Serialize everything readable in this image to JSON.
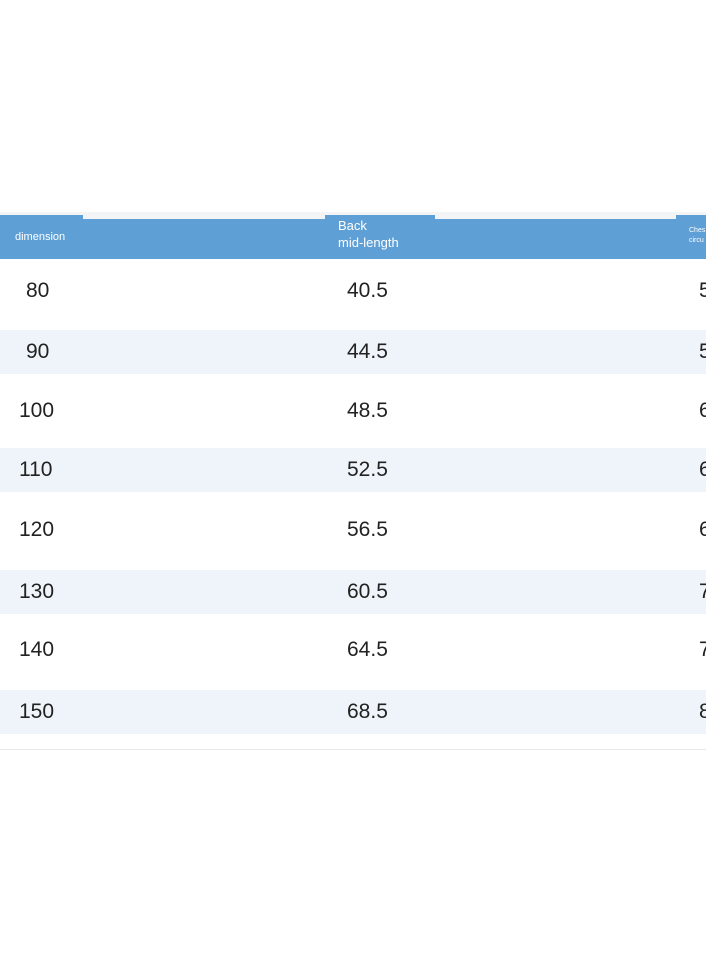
{
  "table": {
    "headers": {
      "dimension": "dimension",
      "back_line1": "Back",
      "back_line2": "mid-length",
      "chest_line1": "Ches",
      "chest_line2": "circu"
    },
    "rows": [
      {
        "dimension": "80",
        "back": "40.5",
        "chest": "5"
      },
      {
        "dimension": "90",
        "back": "44.5",
        "chest": "5"
      },
      {
        "dimension": "100",
        "back": "48.5",
        "chest": "6"
      },
      {
        "dimension": "110",
        "back": "52.5",
        "chest": "6"
      },
      {
        "dimension": "120",
        "back": "56.5",
        "chest": "6"
      },
      {
        "dimension": "130",
        "back": "60.5",
        "chest": "7"
      },
      {
        "dimension": "140",
        "back": "64.5",
        "chest": "7"
      },
      {
        "dimension": "150",
        "back": "68.5",
        "chest": "8"
      }
    ]
  },
  "colors": {
    "header": "#5e9fd5",
    "alt_row": "#eef4fa",
    "text": "#222222"
  }
}
